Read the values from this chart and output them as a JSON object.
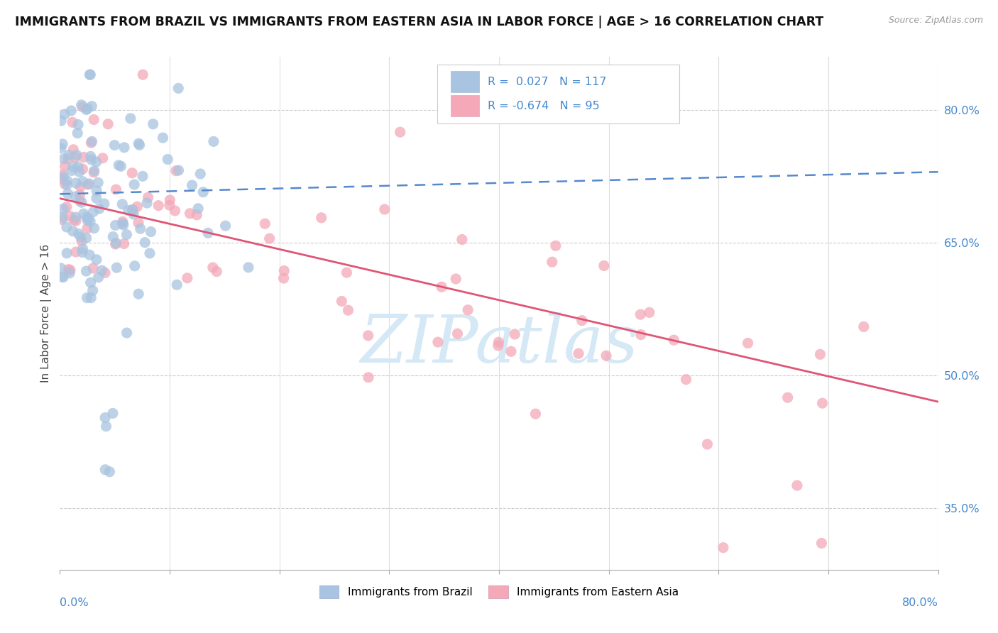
{
  "title": "IMMIGRANTS FROM BRAZIL VS IMMIGRANTS FROM EASTERN ASIA IN LABOR FORCE | AGE > 16 CORRELATION CHART",
  "source": "Source: ZipAtlas.com",
  "ylabel": "In Labor Force | Age > 16",
  "xmin": 0.0,
  "xmax": 0.8,
  "ymin": 0.28,
  "ymax": 0.86,
  "right_yticks": [
    0.8,
    0.65,
    0.5,
    0.35
  ],
  "right_yticklabels": [
    "80.0%",
    "65.0%",
    "50.0%",
    "35.0%"
  ],
  "brazil_R": 0.027,
  "brazil_N": 117,
  "eastern_asia_R": -0.674,
  "eastern_asia_N": 95,
  "brazil_color": "#a8c4e0",
  "eastern_asia_color": "#f4a8b8",
  "brazil_line_color": "#5588cc",
  "eastern_asia_line_color": "#e05575",
  "watermark_text": "ZIPatlas",
  "watermark_color": "#d5e8f5",
  "background_color": "#ffffff",
  "title_fontsize": 12.5,
  "brazil_trend_start_y": 0.705,
  "brazil_trend_end_y": 0.73,
  "eastern_asia_trend_start_y": 0.7,
  "eastern_asia_trend_end_y": 0.47
}
